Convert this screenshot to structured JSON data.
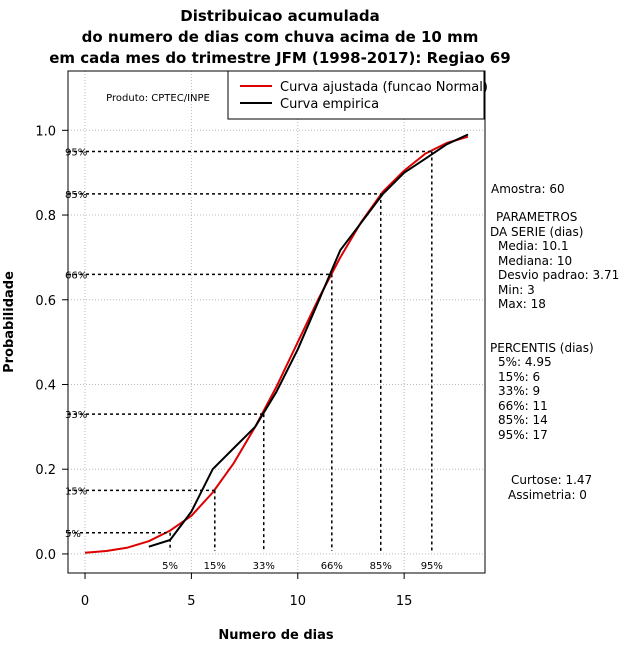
{
  "title_lines": [
    "Distribuicao acumulada",
    "do numero de dias com chuva acima de 10 mm",
    "em cada mes do trimestre JFM (1998-2017): Regiao 69"
  ],
  "product_label": "Produto: CPTEC/INPE",
  "stats": {
    "sample": "Amostra: 60",
    "params_title_1": "PARAMETROS",
    "params_title_2": "DA SERIE (dias)",
    "mean": "Media: 10.1",
    "median": "Mediana: 10",
    "std": "Desvio padrao: 3.71",
    "min": "Min: 3",
    "max": "Max: 18",
    "percentis_title": "PERCENTIS (dias)",
    "p5": "5%: 4.95",
    "p15": "15%: 6",
    "p33": "33%: 9",
    "p66": "66%: 11",
    "p85": "85%: 14",
    "p95": "95%: 17",
    "kurtosis": "Curtose: 1.47",
    "skewness": "Assimetria: 0"
  },
  "colors": {
    "fitted": "#dd0000",
    "empirical": "#000000",
    "grid": "#bbbbbb"
  },
  "chart_data": {
    "type": "line",
    "xlabel": "Numero de dias",
    "ylabel": "Probabilidade",
    "xlim": [
      -0.8,
      18.8
    ],
    "ylim": [
      -0.045,
      1.14
    ],
    "xticks": [
      0,
      5,
      10,
      15
    ],
    "yticks": [
      0.0,
      0.2,
      0.4,
      0.6,
      0.8,
      1.0
    ],
    "ytick_labels": [
      "0.0",
      "0.2",
      "0.4",
      "0.6",
      "0.8",
      "1.0"
    ],
    "legend": {
      "position": "top-right",
      "entries": [
        "Curva ajustada (funcao Normal)",
        "Curva empirica"
      ]
    },
    "series": [
      {
        "name": "Curva ajustada (funcao Normal)",
        "x": [
          0,
          1,
          2,
          3,
          4,
          5,
          6,
          7,
          8,
          9,
          10,
          11,
          12,
          13,
          14,
          15,
          16,
          17,
          18
        ],
        "y": [
          0.003,
          0.007,
          0.015,
          0.03,
          0.055,
          0.09,
          0.145,
          0.215,
          0.3,
          0.395,
          0.5,
          0.605,
          0.7,
          0.785,
          0.855,
          0.905,
          0.945,
          0.97,
          0.985
        ]
      },
      {
        "name": "Curva empirica",
        "x": [
          3,
          4,
          5,
          6,
          7,
          8,
          9,
          10,
          11,
          12,
          13,
          14,
          15,
          16,
          17,
          18
        ],
        "y": [
          0.017,
          0.033,
          0.1,
          0.2,
          0.25,
          0.3,
          0.383,
          0.483,
          0.6,
          0.717,
          0.783,
          0.85,
          0.9,
          0.933,
          0.967,
          0.99
        ]
      }
    ],
    "percentiles": [
      {
        "label": "5%",
        "prob": 0.05,
        "value": 4.0
      },
      {
        "label": "15%",
        "prob": 0.15,
        "value": 6.1
      },
      {
        "label": "33%",
        "prob": 0.33,
        "value": 8.4
      },
      {
        "label": "66%",
        "prob": 0.66,
        "value": 11.6
      },
      {
        "label": "85%",
        "prob": 0.85,
        "value": 13.9
      },
      {
        "label": "95%",
        "prob": 0.95,
        "value": 16.3
      }
    ]
  }
}
